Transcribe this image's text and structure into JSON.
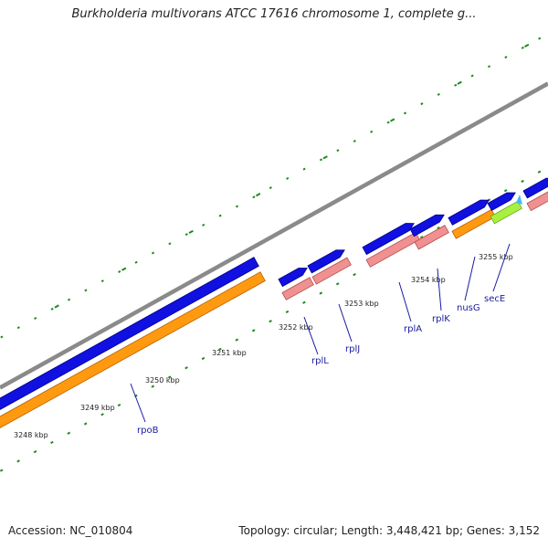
{
  "title": "Burkholderia multivorans ATCC 17616 chromosome 1, complete g...",
  "footer": {
    "accession_label": "Accession:",
    "accession": "NC_010804",
    "topology_label": "Topology:",
    "topology": "circular",
    "length_label": "Length:",
    "length": "3,448,421 bp",
    "genes_label": "Genes:",
    "genes": "3,152"
  },
  "colors": {
    "backbone": "#8a8a8a",
    "cds_forward": "#1010e0",
    "cds_forward_dark": "#000088",
    "rna_orange": "#ff9a10",
    "rna_orange_dark": "#b85e00",
    "rna_pink": "#f09090",
    "rna_pink_dark": "#b05050",
    "green_feature": "#a8f040",
    "cyan_feature": "#40b8ff",
    "tick": "#1e8a1e",
    "label_line": "#1a1aa0"
  },
  "scale_labels": [
    "3248 kbp",
    "3249 kbp",
    "3250 kbp",
    "3251 kbp",
    "3252 kbp",
    "3253 kbp",
    "3254 kbp",
    "3255 kbp"
  ],
  "genes": [
    {
      "name": "rpoB"
    },
    {
      "name": "rplL"
    },
    {
      "name": "rplJ"
    },
    {
      "name": "rplA"
    },
    {
      "name": "rplK"
    },
    {
      "name": "nusG"
    },
    {
      "name": "secE"
    }
  ]
}
